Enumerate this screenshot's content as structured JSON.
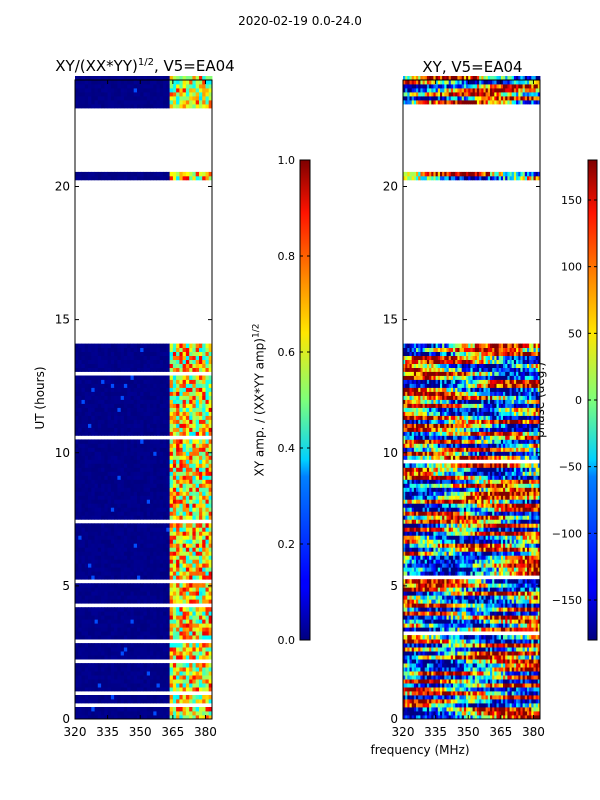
{
  "suptitle": "2020-02-19 0.0-24.0",
  "chart_data": [
    {
      "type": "heatmap",
      "title": "XY/(XX*YY)",
      "title_superscript": "1/2",
      "title_suffix": ", V5=EA04",
      "xlabel": "",
      "ylabel": "UT (hours)",
      "xlim": [
        320,
        383
      ],
      "ylim": [
        0,
        24
      ],
      "xticks": [
        320,
        335,
        350,
        365,
        380
      ],
      "yticks": [
        0,
        5,
        10,
        15,
        20
      ],
      "colorbar": {
        "label": "XY amp. / (XX*YY amp)",
        "label_superscript": "1/2",
        "range": [
          0.0,
          1.0
        ],
        "ticks": [
          0.0,
          0.2,
          0.4,
          0.6,
          0.8,
          1.0
        ],
        "tick_labels": [
          "0.0",
          "0.2",
          "0.4",
          "0.6",
          "0.8",
          "1.0"
        ]
      },
      "colormap": "jet",
      "data_description": "mostly low amplitude (~0.0) for 320-362 MHz; higher amplitude (0.4-0.9) band structure between ~363 and 380 MHz",
      "data_gaps_hours": [
        [
          14.0,
          20.1
        ],
        [
          20.5,
          22.8
        ]
      ]
    },
    {
      "type": "heatmap",
      "title": "XY, V5=EA04",
      "xlabel": "frequency (MHz)",
      "ylabel": "",
      "xlim": [
        320,
        383
      ],
      "ylim": [
        0,
        24
      ],
      "xticks": [
        320,
        335,
        350,
        365,
        380
      ],
      "yticks": [
        0,
        5,
        10,
        15,
        20
      ],
      "colorbar": {
        "label": "phase (deg.)",
        "range": [
          -180,
          180
        ],
        "ticks": [
          -150,
          -100,
          -50,
          0,
          50,
          100,
          150
        ],
        "tick_labels": [
          "−150",
          "−100",
          "−50",
          "0",
          "50",
          "100",
          "150"
        ]
      },
      "colormap": "jet",
      "data_description": "phase varies widely (-180 to 180 deg) across the full band",
      "data_gaps_hours": [
        [
          14.0,
          20.1
        ],
        [
          20.5,
          22.8
        ]
      ]
    }
  ]
}
